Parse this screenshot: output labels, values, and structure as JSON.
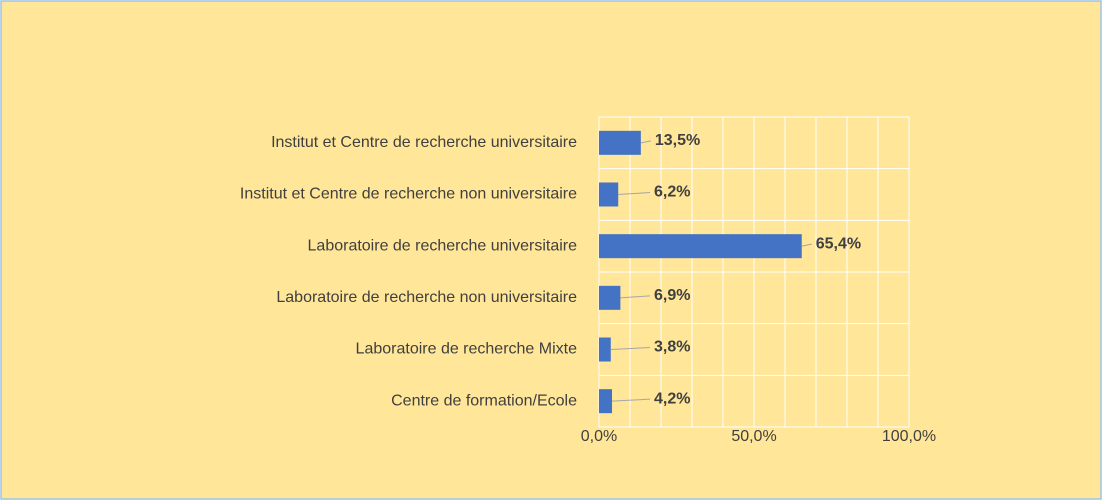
{
  "chart_data": {
    "type": "bar",
    "orientation": "horizontal",
    "categories": [
      "Institut et Centre de recherche universitaire",
      "Institut et Centre de recherche non universitaire",
      "Laboratoire de recherche universitaire",
      "Laboratoire de recherche non universitaire",
      "Laboratoire de recherche Mixte",
      "Centre de formation/Ecole"
    ],
    "values": [
      13.5,
      6.2,
      65.4,
      6.9,
      3.8,
      4.2
    ],
    "value_labels": [
      "13,5%",
      "6,2%",
      "65,4%",
      "6,9%",
      "3,8%",
      "4,2%"
    ],
    "color": "#4472c4",
    "xlim": [
      0,
      100
    ],
    "xticks": [
      {
        "value": 0,
        "label": "0,0%"
      },
      {
        "value": 50,
        "label": "50,0%"
      },
      {
        "value": 100,
        "label": "100,0%"
      }
    ],
    "minor_xticks": [
      10,
      20,
      30,
      40,
      60,
      70,
      80,
      90
    ],
    "grid": true
  }
}
